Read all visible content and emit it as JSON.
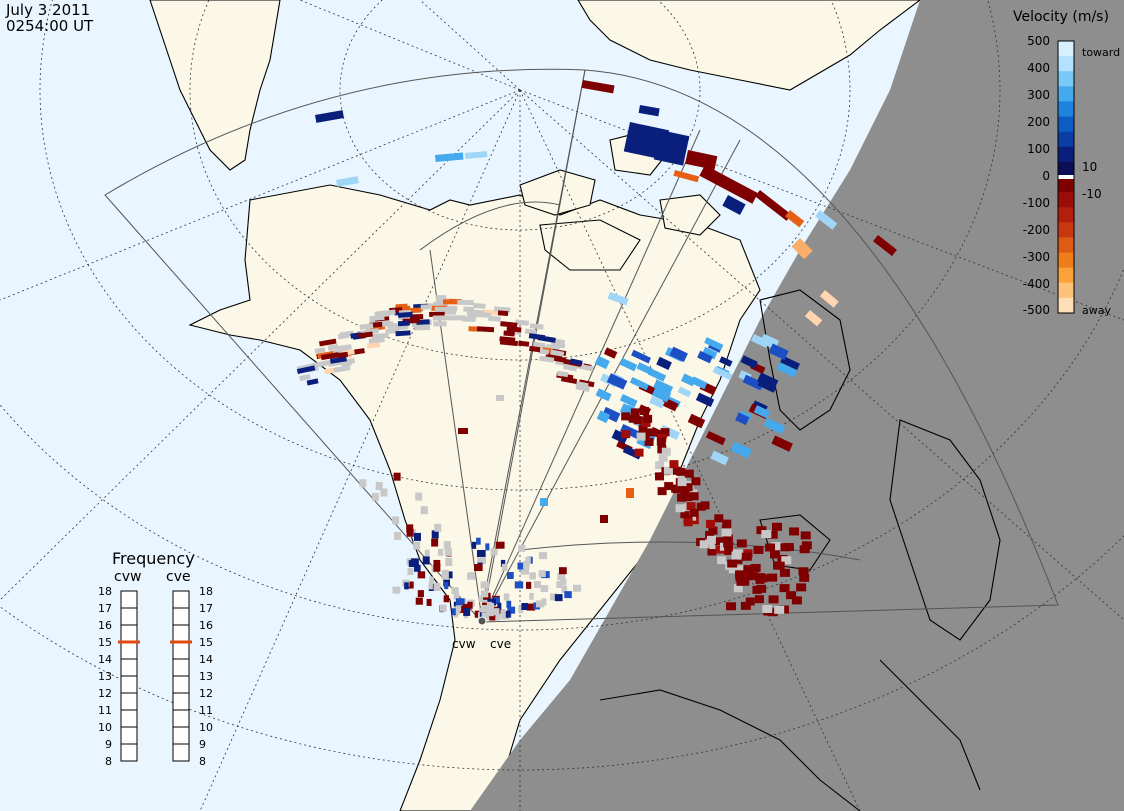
{
  "header": {
    "date": "July  3 2011",
    "time": "0254:00 UT"
  },
  "velocity_scale": {
    "title": "Velocity (m/s)",
    "labels": [
      "500",
      "400",
      "300",
      "200",
      "100",
      "10",
      "0",
      "-10",
      "-100",
      "-200",
      "-300",
      "-400",
      "-500"
    ],
    "toward_label": "toward",
    "away_label": "away",
    "colors_top_to_bottom": [
      "#d8f1ff",
      "#b2e2ff",
      "#79c8f7",
      "#45a9ee",
      "#1d83dd",
      "#0d5cc4",
      "#0a3ea5",
      "#0a1f7c",
      "#0b0e55",
      "#7f0000",
      "#9b0d08",
      "#b31f0c",
      "#c7380f",
      "#dd5b14",
      "#ef7e1a",
      "#fba23a",
      "#ffc27a",
      "#ffdfb8"
    ]
  },
  "frequency_panel": {
    "title": "Frequency",
    "radars": [
      "cvw",
      "cve"
    ],
    "ticks": [
      "18",
      "17",
      "16",
      "15",
      "14",
      "13",
      "12",
      "11",
      "10",
      "9",
      "8"
    ],
    "cvw_mhz": 15,
    "cve_mhz": 15,
    "marker_color": "#e04a10"
  },
  "radar_sites": [
    {
      "code": "cvw"
    },
    {
      "code": "cve"
    }
  ],
  "colors": {
    "ocean_day": "#eaf6ff",
    "land_day": "#fbf8e8",
    "night": "#8e8e8e",
    "ground_scatter": "#c8c8c8"
  }
}
